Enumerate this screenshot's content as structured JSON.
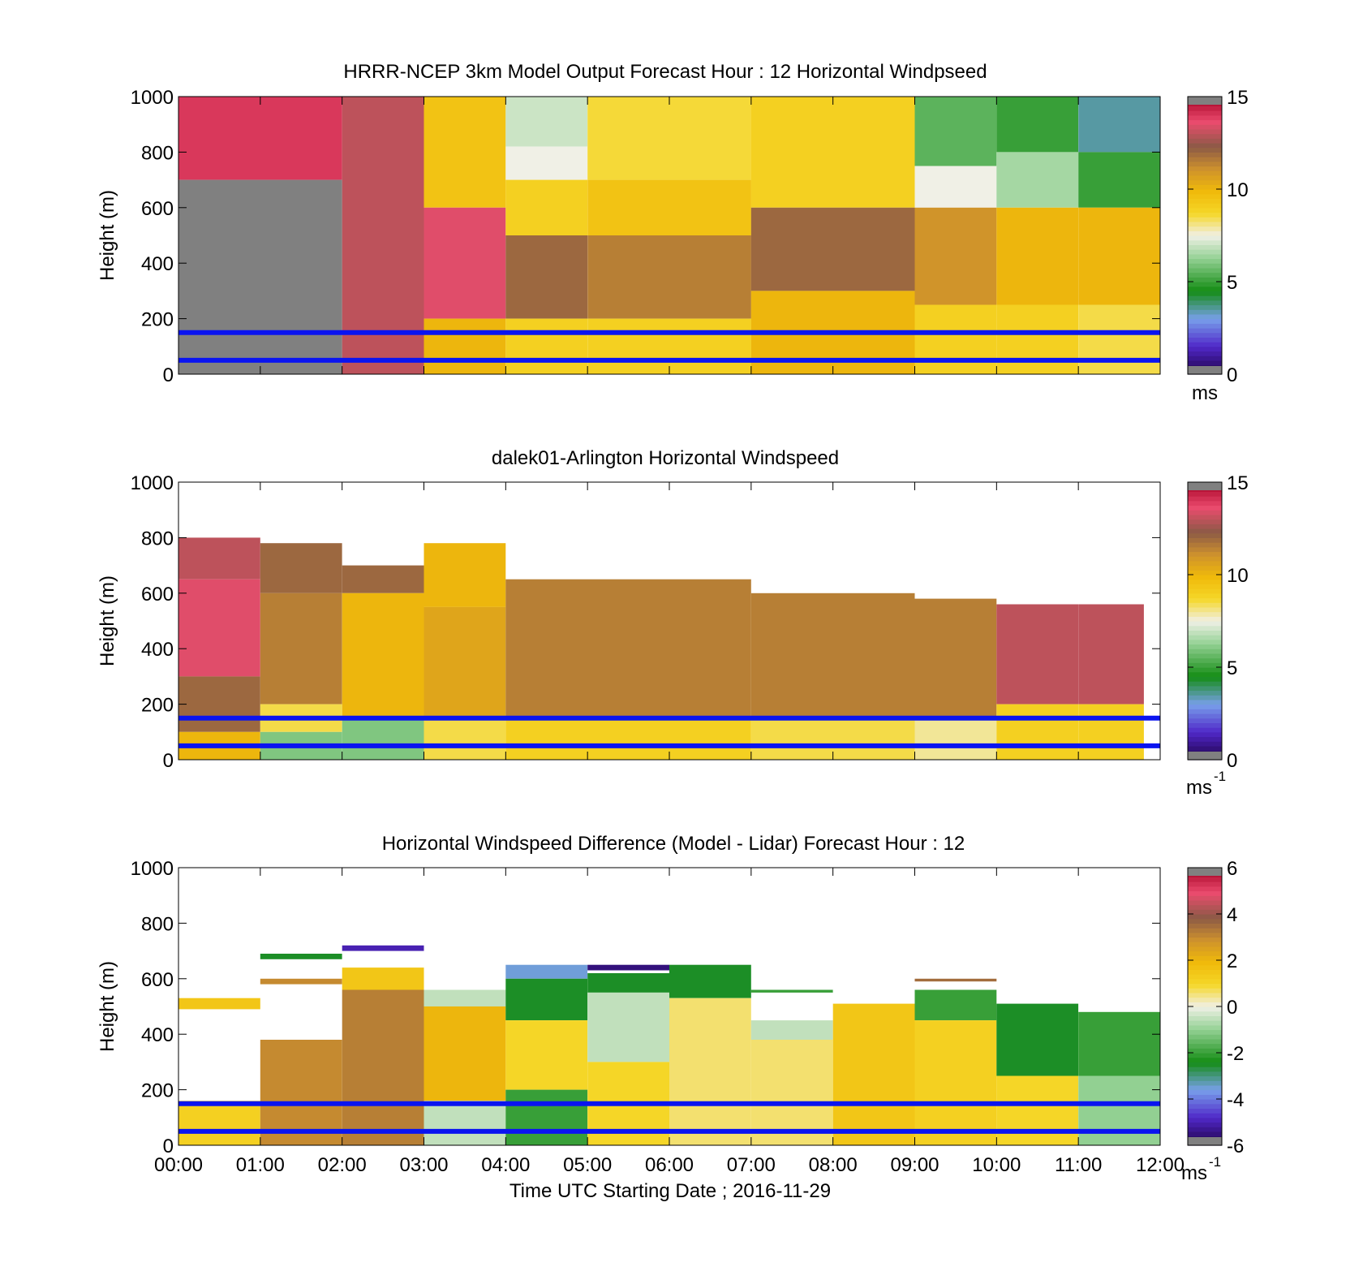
{
  "figure": {
    "xlabel": "Time UTC  Starting Date ; 2016-11-29",
    "xticks": [
      "00:00",
      "01:00",
      "02:00",
      "03:00",
      "04:00",
      "05:00",
      "06:00",
      "07:00",
      "08:00",
      "09:00",
      "10:00",
      "11:00",
      "12:00"
    ],
    "reference_lines_m": [
      150,
      50
    ],
    "reference_line_color": "#0a14f0"
  },
  "chart_data": [
    {
      "type": "heatmap",
      "title": "HRRR-NCEP 3km Model Output   Forecast Hour : 12 Horizontal Windpseed",
      "ylabel": "Height (m)",
      "ylim": [
        0,
        1000
      ],
      "yticks": [
        "0",
        "200",
        "400",
        "600",
        "800",
        "1000"
      ],
      "xlim_hours": [
        0,
        12
      ],
      "colorbar": {
        "min": 0,
        "max": 15,
        "ticks": [
          "0",
          "5",
          "10",
          "15"
        ],
        "unit_label": "ms",
        "unit_superscript": ""
      },
      "columns": [
        {
          "t0": 0,
          "t1": 2,
          "rows": [
            [
              700,
              1000,
              14
            ],
            [
              0,
              700,
              -1
            ]
          ]
        },
        {
          "t0": 2,
          "t1": 3,
          "rows": [
            [
              0,
              1000,
              13
            ]
          ]
        },
        {
          "t0": 3,
          "t1": 4,
          "rows": [
            [
              600,
              1000,
              9.5
            ],
            [
              200,
              600,
              13.5
            ],
            [
              0,
              200,
              10
            ]
          ]
        },
        {
          "t0": 4,
          "t1": 5,
          "rows": [
            [
              820,
              1000,
              7
            ],
            [
              700,
              820,
              7.5
            ],
            [
              500,
              700,
              9
            ],
            [
              200,
              500,
              12
            ],
            [
              0,
              200,
              9
            ]
          ]
        },
        {
          "t0": 5,
          "t1": 7,
          "rows": [
            [
              700,
              1000,
              8.6
            ],
            [
              500,
              700,
              9.5
            ],
            [
              200,
              500,
              11.5
            ],
            [
              0,
              200,
              9
            ]
          ]
        },
        {
          "t0": 7,
          "t1": 9,
          "rows": [
            [
              600,
              1000,
              9
            ],
            [
              300,
              600,
              12
            ],
            [
              0,
              300,
              10
            ]
          ]
        },
        {
          "t0": 9,
          "t1": 10,
          "rows": [
            [
              750,
              1000,
              5.5
            ],
            [
              600,
              750,
              7.5
            ],
            [
              250,
              600,
              11
            ],
            [
              0,
              250,
              9
            ]
          ]
        },
        {
          "t0": 10,
          "t1": 11,
          "rows": [
            [
              800,
              1000,
              5
            ],
            [
              600,
              800,
              6.5
            ],
            [
              250,
              600,
              10
            ],
            [
              0,
              250,
              9
            ]
          ]
        },
        {
          "t0": 11,
          "t1": 12,
          "rows": [
            [
              800,
              1000,
              3.5
            ],
            [
              600,
              800,
              5
            ],
            [
              250,
              600,
              10
            ],
            [
              0,
              250,
              8.5
            ]
          ]
        }
      ]
    },
    {
      "type": "heatmap",
      "title": "dalek01-Arlington  Horizontal Windspeed",
      "ylabel": "Height (m)",
      "ylim": [
        0,
        1000
      ],
      "yticks": [
        "0",
        "200",
        "400",
        "600",
        "800",
        "1000"
      ],
      "xlim_hours": [
        0,
        12
      ],
      "colorbar": {
        "min": 0,
        "max": 15,
        "ticks": [
          "0",
          "5",
          "10",
          "15"
        ],
        "unit_label": "ms",
        "unit_superscript": "-1"
      },
      "columns": [
        {
          "t0": 0,
          "t1": 1,
          "rows": [
            [
              650,
              800,
              13
            ],
            [
              300,
              650,
              13.5
            ],
            [
              100,
              300,
              12
            ],
            [
              0,
              100,
              10
            ]
          ]
        },
        {
          "t0": 1,
          "t1": 2,
          "rows": [
            [
              600,
              780,
              12
            ],
            [
              200,
              600,
              11.5
            ],
            [
              100,
              200,
              8.5
            ],
            [
              0,
              100,
              6
            ]
          ]
        },
        {
          "t0": 2,
          "t1": 3,
          "rows": [
            [
              600,
              700,
              12
            ],
            [
              150,
              600,
              10
            ],
            [
              0,
              150,
              6
            ]
          ]
        },
        {
          "t0": 3,
          "t1": 4,
          "rows": [
            [
              550,
              780,
              10
            ],
            [
              150,
              550,
              10.5
            ],
            [
              0,
              150,
              8.5
            ]
          ]
        },
        {
          "t0": 4,
          "t1": 7,
          "rows": [
            [
              150,
              650,
              11.5
            ],
            [
              0,
              150,
              9
            ]
          ]
        },
        {
          "t0": 7,
          "t1": 9,
          "rows": [
            [
              150,
              600,
              11.5
            ],
            [
              0,
              150,
              8.5
            ]
          ]
        },
        {
          "t0": 9,
          "t1": 10,
          "rows": [
            [
              150,
              580,
              11.5
            ],
            [
              0,
              150,
              8
            ]
          ]
        },
        {
          "t0": 10,
          "t1": 11,
          "rows": [
            [
              200,
              560,
              13
            ],
            [
              0,
              200,
              9
            ]
          ]
        },
        {
          "t0": 11,
          "t1": 11.8,
          "rows": [
            [
              200,
              560,
              13
            ],
            [
              0,
              200,
              9
            ]
          ]
        }
      ]
    },
    {
      "type": "heatmap",
      "title": "Horizontal Windspeed Difference (Model - Lidar) Forecast Hour : 12",
      "ylabel": "Height (m)",
      "ylim": [
        0,
        1000
      ],
      "yticks": [
        "0",
        "200",
        "400",
        "600",
        "800",
        "1000"
      ],
      "xlim_hours": [
        0,
        12
      ],
      "colorbar": {
        "min": -6,
        "max": 6,
        "ticks": [
          "-6",
          "-4",
          "-2",
          "0",
          "2",
          "4",
          "6"
        ],
        "unit_label": "ms",
        "unit_superscript": "-1"
      },
      "columns": [
        {
          "t0": 0,
          "t1": 1,
          "rows": [
            [
              490,
              530,
              1.5
            ],
            [
              0,
              160,
              1.2
            ]
          ]
        },
        {
          "t0": 1,
          "t1": 2,
          "rows": [
            [
              670,
              690,
              -2.5
            ],
            [
              580,
              600,
              3
            ],
            [
              0,
              380,
              3
            ]
          ]
        },
        {
          "t0": 2,
          "t1": 3,
          "rows": [
            [
              700,
              720,
              -5
            ],
            [
              560,
              640,
              1.5
            ],
            [
              0,
              560,
              3.2
            ]
          ]
        },
        {
          "t0": 3,
          "t1": 4,
          "rows": [
            [
              500,
              560,
              -0.5
            ],
            [
              160,
              500,
              2
            ],
            [
              0,
              160,
              -0.5
            ]
          ]
        },
        {
          "t0": 4,
          "t1": 5,
          "rows": [
            [
              600,
              650,
              -3.5
            ],
            [
              450,
              600,
              -2.5
            ],
            [
              200,
              450,
              1
            ],
            [
              0,
              200,
              -2
            ]
          ]
        },
        {
          "t0": 5,
          "t1": 6,
          "rows": [
            [
              630,
              650,
              -5.5
            ],
            [
              550,
              620,
              -2.5
            ],
            [
              300,
              550,
              -0.5
            ],
            [
              0,
              300,
              1
            ]
          ]
        },
        {
          "t0": 6,
          "t1": 7,
          "rows": [
            [
              530,
              650,
              -2.5
            ],
            [
              0,
              530,
              0.6
            ]
          ]
        },
        {
          "t0": 7,
          "t1": 8,
          "rows": [
            [
              550,
              560,
              -2
            ],
            [
              380,
              450,
              -0.5
            ],
            [
              0,
              380,
              0.6
            ]
          ]
        },
        {
          "t0": 8,
          "t1": 9,
          "rows": [
            [
              0,
              510,
              1.5
            ]
          ]
        },
        {
          "t0": 9,
          "t1": 10,
          "rows": [
            [
              590,
              600,
              3.5
            ],
            [
              450,
              560,
              -2
            ],
            [
              0,
              450,
              1.2
            ]
          ]
        },
        {
          "t0": 10,
          "t1": 11,
          "rows": [
            [
              250,
              510,
              -2.5
            ],
            [
              0,
              250,
              1
            ]
          ]
        },
        {
          "t0": 11,
          "t1": 12,
          "rows": [
            [
              250,
              480,
              -2
            ],
            [
              0,
              250,
              -1
            ]
          ]
        }
      ]
    }
  ]
}
